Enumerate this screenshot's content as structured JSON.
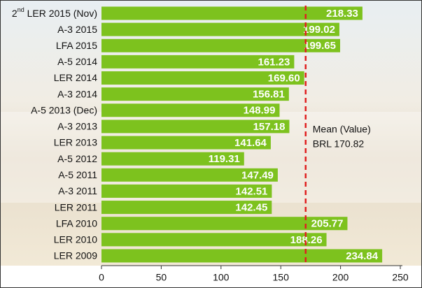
{
  "chart_data": {
    "type": "barh",
    "categories": [
      "2nd LER 2015 (Nov)",
      "A-3 2015",
      "LFA 2015",
      "A-5 2014",
      "LER 2014",
      "A-3 2014",
      "A-5 2013 (Dec)",
      "A-3 2013",
      "LER 2013",
      "A-5 2012",
      "A-5 2011",
      "A-3 2011",
      "LER 2011",
      "LFA 2010",
      "LER 2010",
      "LER 2009"
    ],
    "values": [
      218.33,
      199.02,
      199.65,
      161.23,
      169.6,
      156.81,
      148.99,
      157.18,
      141.64,
      119.31,
      147.49,
      142.51,
      142.45,
      205.77,
      188.26,
      234.84
    ],
    "value_labels": [
      "218.33",
      "199.02",
      "199.65",
      "161.23",
      "169.60",
      "156.81",
      "148.99",
      "157.18",
      "141.64",
      "119.31",
      "147.49",
      "142.51",
      "142.45",
      "205.77",
      "188.26",
      "234.84"
    ],
    "color": "#7dc21e",
    "xlim": [
      0,
      250
    ],
    "xticks": [
      0,
      50,
      100,
      150,
      200,
      250
    ],
    "mean": 170.82,
    "mean_color": "#e02020",
    "annotations": [
      "Mean (Value)",
      "BRL 170.82"
    ]
  }
}
